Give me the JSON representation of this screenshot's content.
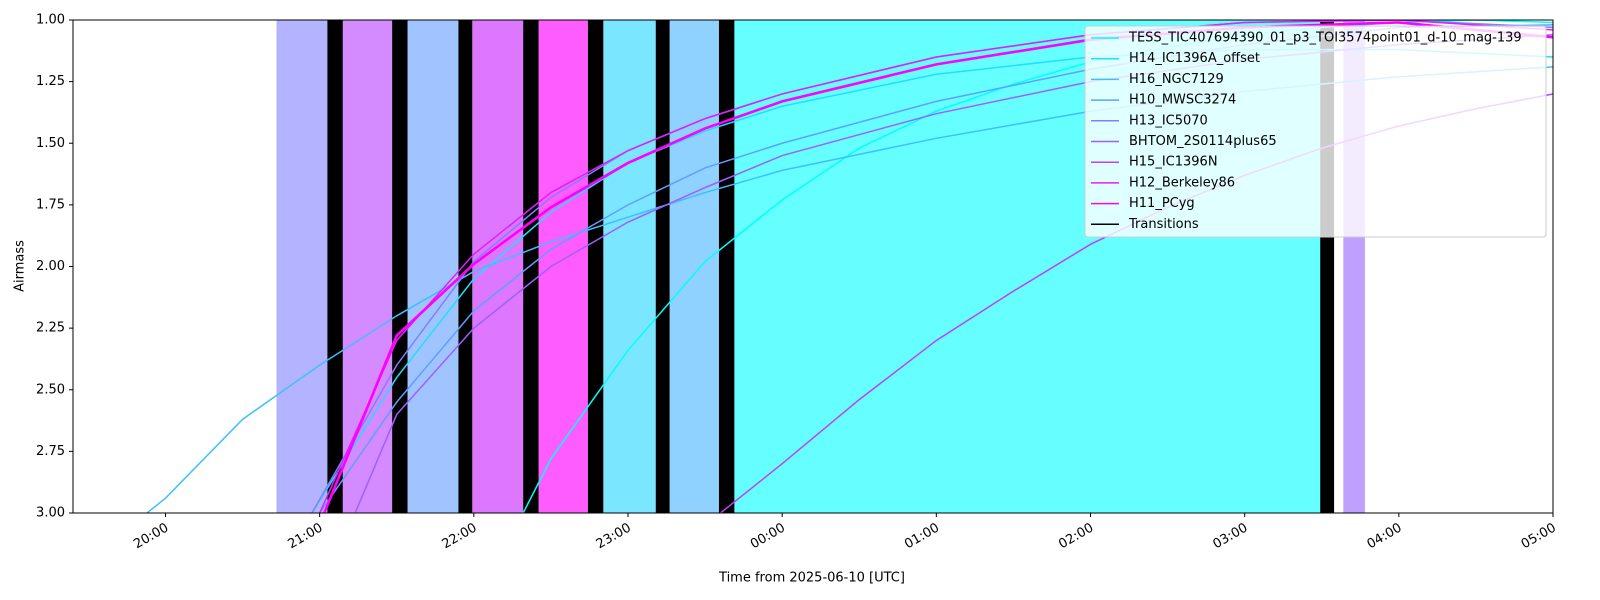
{
  "chart_data": {
    "type": "line",
    "xlabel": "Time from 2025-06-10 [UTC]",
    "ylabel": "Airmass",
    "xlim": [
      19.4,
      29.0
    ],
    "ylim": [
      3.0,
      1.0
    ],
    "xticks": [
      {
        "value": 20,
        "label": "20:00"
      },
      {
        "value": 21,
        "label": "21:00"
      },
      {
        "value": 22,
        "label": "22:00"
      },
      {
        "value": 23,
        "label": "23:00"
      },
      {
        "value": 24,
        "label": "00:00"
      },
      {
        "value": 25,
        "label": "01:00"
      },
      {
        "value": 26,
        "label": "02:00"
      },
      {
        "value": 27,
        "label": "03:00"
      },
      {
        "value": 28,
        "label": "04:00"
      },
      {
        "value": 29,
        "label": "05:00"
      }
    ],
    "yticks": [
      {
        "value": 1.0,
        "label": "1.00"
      },
      {
        "value": 1.25,
        "label": "1.25"
      },
      {
        "value": 1.5,
        "label": "1.50"
      },
      {
        "value": 1.75,
        "label": "1.75"
      },
      {
        "value": 2.0,
        "label": "2.00"
      },
      {
        "value": 2.25,
        "label": "2.25"
      },
      {
        "value": 2.5,
        "label": "2.50"
      },
      {
        "value": 2.75,
        "label": "2.75"
      },
      {
        "value": 3.0,
        "label": "3.00"
      }
    ],
    "blocks": [
      {
        "start": 20.72,
        "end": 21.05,
        "color": "#b3b3ff"
      },
      {
        "start": 21.15,
        "end": 21.47,
        "color": "#d38bff"
      },
      {
        "start": 21.57,
        "end": 21.9,
        "color": "#9fc4ff"
      },
      {
        "start": 21.99,
        "end": 22.32,
        "color": "#dd77ff"
      },
      {
        "start": 22.42,
        "end": 22.74,
        "color": "#ff5cff"
      },
      {
        "start": 22.84,
        "end": 23.18,
        "color": "#7ae6ff"
      },
      {
        "start": 23.27,
        "end": 23.59,
        "color": "#8fd1ff"
      },
      {
        "start": 23.69,
        "end": 27.49,
        "color": "#66ffff"
      },
      {
        "start": 27.64,
        "end": 27.78,
        "color": "#c0a0ff"
      }
    ],
    "transitions": [
      {
        "start": 21.05,
        "end": 21.15
      },
      {
        "start": 21.47,
        "end": 21.57
      },
      {
        "start": 21.9,
        "end": 21.99
      },
      {
        "start": 22.32,
        "end": 22.42
      },
      {
        "start": 22.74,
        "end": 22.84
      },
      {
        "start": 23.18,
        "end": 23.27
      },
      {
        "start": 23.59,
        "end": 23.69
      },
      {
        "start": 27.49,
        "end": 27.58
      }
    ],
    "transitions_label": "Transitions",
    "transitions_color": "#000000",
    "legend": "upper right",
    "series": [
      {
        "name": "TESS_TIC407694390_01_p3_TOI3574point01_d-10_mag-139",
        "color": "#00ffff",
        "x": [
          22.32,
          22.5,
          23,
          23.5,
          24,
          24.5,
          25,
          25.5,
          26,
          26.5,
          27,
          27.5,
          28,
          28.5,
          29
        ],
        "values": [
          3.0,
          2.78,
          2.34,
          1.98,
          1.73,
          1.52,
          1.37,
          1.26,
          1.17,
          1.11,
          1.06,
          1.03,
          1.01,
          1.0,
          1.01
        ]
      },
      {
        "name": "H14_IC1396A_offset",
        "color": "#1fdfff",
        "x": [
          20.95,
          21.5,
          22,
          22.5,
          23,
          23.5,
          24,
          25,
          26,
          27,
          28,
          29
        ],
        "values": [
          3.0,
          2.45,
          2.05,
          1.78,
          1.58,
          1.45,
          1.35,
          1.22,
          1.15,
          1.12,
          1.12,
          1.15
        ]
      },
      {
        "name": "H16_NGC7129",
        "color": "#3fbfff",
        "x": [
          19.88,
          20,
          20.5,
          21,
          21.5,
          22,
          22.5,
          23,
          23.5,
          24,
          25,
          26,
          27,
          28,
          29
        ],
        "values": [
          3.0,
          2.94,
          2.62,
          2.4,
          2.2,
          2.02,
          1.9,
          1.8,
          1.7,
          1.61,
          1.48,
          1.37,
          1.29,
          1.23,
          1.19
        ]
      },
      {
        "name": "H10_MWSC3274",
        "color": "#5f9fff",
        "x": [
          21.0,
          21.5,
          22,
          22.5,
          23,
          23.5,
          24,
          25,
          26,
          27,
          28,
          29
        ],
        "values": [
          3.0,
          2.55,
          2.18,
          1.93,
          1.75,
          1.6,
          1.5,
          1.33,
          1.2,
          1.1,
          1.03,
          1.02
        ]
      },
      {
        "name": "H13_IC5070",
        "color": "#7f7fff",
        "x": [
          20.95,
          21.5,
          22,
          22.5,
          23,
          23.5,
          24,
          25,
          26,
          27,
          28,
          29
        ],
        "values": [
          3.0,
          2.4,
          1.98,
          1.72,
          1.53,
          1.4,
          1.3,
          1.15,
          1.06,
          1.01,
          1.0,
          1.03
        ]
      },
      {
        "name": "BHTOM_2S0114plus65",
        "color": "#9f5fff",
        "x": [
          21.23,
          21.5,
          22,
          22.5,
          23,
          23.5,
          24,
          25,
          26,
          27,
          28,
          29
        ],
        "values": [
          3.0,
          2.6,
          2.25,
          2.0,
          1.82,
          1.68,
          1.55,
          1.38,
          1.25,
          1.16,
          1.1,
          1.06
        ]
      },
      {
        "name": "H15_IC1396N",
        "color": "#bf3fff",
        "x": [
          23.6,
          24,
          24.5,
          25,
          25.5,
          26,
          26.5,
          27,
          27.5,
          28,
          28.5,
          29
        ],
        "values": [
          3.0,
          2.8,
          2.54,
          2.3,
          2.1,
          1.91,
          1.76,
          1.63,
          1.52,
          1.43,
          1.36,
          1.3
        ]
      },
      {
        "name": "H12_Berkeley86",
        "color": "#df1fff",
        "x": [
          21.0,
          21.5,
          22,
          22.5,
          23,
          23.5,
          24,
          25,
          26,
          27,
          28,
          29
        ],
        "values": [
          3.0,
          2.3,
          1.95,
          1.7,
          1.53,
          1.4,
          1.3,
          1.15,
          1.06,
          1.01,
          1.0,
          1.04
        ]
      },
      {
        "name": "H11_PCyg",
        "color": "#ff00ff",
        "bold": true,
        "x": [
          21.03,
          21.5,
          22,
          22.5,
          23,
          23.5,
          24,
          25,
          26,
          27,
          28,
          29
        ],
        "values": [
          3.0,
          2.28,
          1.99,
          1.76,
          1.58,
          1.44,
          1.33,
          1.18,
          1.08,
          1.03,
          1.01,
          1.07
        ]
      }
    ]
  }
}
